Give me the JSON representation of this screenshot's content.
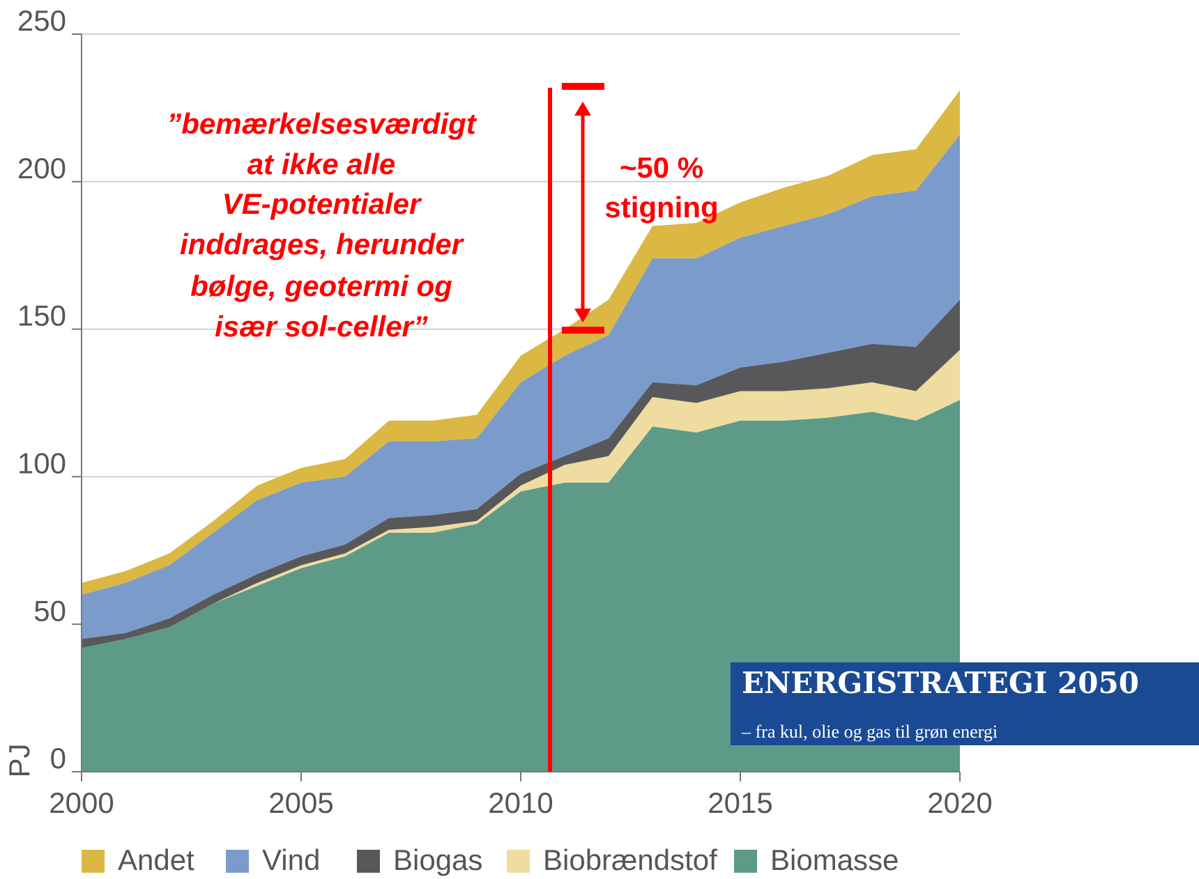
{
  "chart_data": {
    "type": "stacked_area",
    "ylabel": "PJ",
    "x": [
      2000,
      2001,
      2002,
      2003,
      2004,
      2005,
      2006,
      2007,
      2008,
      2009,
      2010,
      2011,
      2012,
      2013,
      2014,
      2015,
      2016,
      2017,
      2018,
      2019,
      2020
    ],
    "xlim": [
      2000,
      2020
    ],
    "xticks": [
      2000,
      2005,
      2010,
      2015,
      2020
    ],
    "ylim": [
      0,
      250
    ],
    "yticks": [
      0,
      50,
      100,
      150,
      200,
      250
    ],
    "grid": true,
    "series": [
      {
        "name": "Andet",
        "color": "#dbb843",
        "values": [
          4,
          4,
          4,
          4,
          5,
          5,
          6,
          7,
          7,
          8,
          9,
          9,
          12,
          11,
          12,
          12,
          13,
          13,
          14,
          14,
          15
        ]
      },
      {
        "name": "Vind",
        "color": "#7b9bcb",
        "values": [
          15,
          17,
          18,
          21,
          25,
          25,
          23,
          26,
          25,
          24,
          31,
          34,
          35,
          42,
          43,
          44,
          46,
          47,
          50,
          53,
          56
        ]
      },
      {
        "name": "Biogas",
        "color": "#58585a",
        "values": [
          3,
          2,
          3,
          3,
          3,
          3,
          3,
          4,
          4,
          4,
          4,
          3,
          6,
          5,
          6,
          8,
          10,
          12,
          13,
          15,
          17
        ]
      },
      {
        "name": "Biobrændstof",
        "color": "#eedca0",
        "values": [
          0,
          0,
          0,
          0,
          1,
          1,
          1,
          1,
          2,
          1,
          2,
          6,
          9,
          10,
          10,
          10,
          10,
          10,
          10,
          10,
          17
        ]
      },
      {
        "name": "Biomasse",
        "color": "#5d9a88",
        "values": [
          42,
          45,
          49,
          57,
          63,
          69,
          73,
          81,
          81,
          84,
          95,
          98,
          98,
          117,
          115,
          119,
          119,
          120,
          122,
          119,
          126
        ]
      }
    ],
    "annotation": [
      "”bemærkelsesværdigt",
      "at ikke alle",
      "VE-potentialer",
      "inddrages, herunder",
      "bølge, geotermi og",
      "især sol-celler”"
    ],
    "callout": [
      "~50 %",
      "stigning"
    ],
    "logo": {
      "title": "ENERGISTRATEGI 2050",
      "subtitle": "– fra kul, olie og gas til grøn energi"
    }
  }
}
